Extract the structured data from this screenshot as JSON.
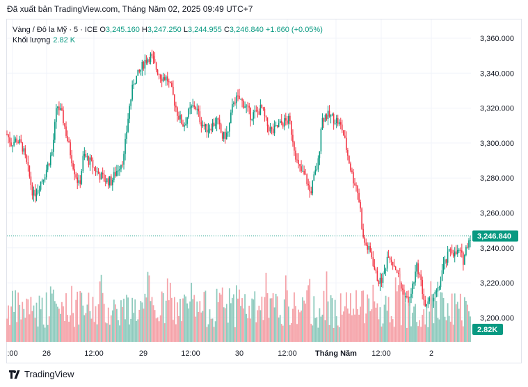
{
  "header": {
    "published_text": "Đã xuất bản TradingView.com, Tháng Năm 02, 2025 09:49 UTC+7"
  },
  "legend": {
    "symbol": "Vàng / Đô la Mỹ · 5 · ICE",
    "open_label": "O",
    "open": "3,245.160",
    "high_label": "H",
    "high": "3,247.250",
    "low_label": "L",
    "low": "3,244.955",
    "close_label": "C",
    "close": "3,246.840",
    "change": "+1.660 (+0.05%)",
    "volume_label": "Khối lượng",
    "volume_value": "2.82 K"
  },
  "colors": {
    "up": "#089981",
    "down": "#f23645",
    "vol_up": "#8fcbbe",
    "vol_down": "#f5a3a9",
    "price_line": "#089981",
    "grid": "#f0f3fa"
  },
  "chart_data": {
    "type": "candlestick",
    "price_axis": {
      "ticks": [
        3360,
        3340,
        3320,
        3300,
        3280,
        3260,
        3240,
        3220,
        3200
      ],
      "tick_labels": [
        "3,360.000",
        "3,340.000",
        "3,320.000",
        "3,300.000",
        "3,280.000",
        "3,260.000",
        "3,240.000",
        "3,220.000",
        "3,200.000"
      ],
      "ylim": [
        3193,
        3373
      ]
    },
    "time_axis": {
      "tick_labels": [
        ":00",
        "26",
        "12:00",
        "29",
        "12:00",
        "30",
        "12:00",
        "Tháng Năm",
        "12:00",
        "2"
      ]
    },
    "last_price_label": "3,246.840",
    "last_price": 3246.84,
    "volume_label": "2.82K",
    "close_path": [
      {
        "t": 0,
        "p": 3305
      },
      {
        "t": 6,
        "p": 3300
      },
      {
        "t": 14,
        "p": 3302
      },
      {
        "t": 22,
        "p": 3298
      },
      {
        "t": 30,
        "p": 3285
      },
      {
        "t": 38,
        "p": 3270
      },
      {
        "t": 45,
        "p": 3275
      },
      {
        "t": 55,
        "p": 3283
      },
      {
        "t": 65,
        "p": 3295
      },
      {
        "t": 72,
        "p": 3322
      },
      {
        "t": 80,
        "p": 3315
      },
      {
        "t": 88,
        "p": 3300
      },
      {
        "t": 96,
        "p": 3286
      },
      {
        "t": 104,
        "p": 3275
      },
      {
        "t": 110,
        "p": 3293
      },
      {
        "t": 120,
        "p": 3289
      },
      {
        "t": 130,
        "p": 3283
      },
      {
        "t": 140,
        "p": 3279
      },
      {
        "t": 150,
        "p": 3278
      },
      {
        "t": 160,
        "p": 3286
      },
      {
        "t": 168,
        "p": 3292
      },
      {
        "t": 175,
        "p": 3318
      },
      {
        "t": 182,
        "p": 3335
      },
      {
        "t": 190,
        "p": 3340
      },
      {
        "t": 198,
        "p": 3347
      },
      {
        "t": 206,
        "p": 3350
      },
      {
        "t": 214,
        "p": 3343
      },
      {
        "t": 222,
        "p": 3338
      },
      {
        "t": 230,
        "p": 3337
      },
      {
        "t": 238,
        "p": 3328
      },
      {
        "t": 246,
        "p": 3316
      },
      {
        "t": 254,
        "p": 3310
      },
      {
        "t": 262,
        "p": 3318
      },
      {
        "t": 270,
        "p": 3322
      },
      {
        "t": 278,
        "p": 3313
      },
      {
        "t": 286,
        "p": 3308
      },
      {
        "t": 294,
        "p": 3310
      },
      {
        "t": 302,
        "p": 3313
      },
      {
        "t": 310,
        "p": 3303
      },
      {
        "t": 318,
        "p": 3306
      },
      {
        "t": 326,
        "p": 3325
      },
      {
        "t": 334,
        "p": 3325
      },
      {
        "t": 342,
        "p": 3322
      },
      {
        "t": 350,
        "p": 3316
      },
      {
        "t": 358,
        "p": 3317
      },
      {
        "t": 366,
        "p": 3320
      },
      {
        "t": 374,
        "p": 3310
      },
      {
        "t": 382,
        "p": 3306
      },
      {
        "t": 390,
        "p": 3310
      },
      {
        "t": 398,
        "p": 3312
      },
      {
        "t": 406,
        "p": 3313
      },
      {
        "t": 412,
        "p": 3300
      },
      {
        "t": 418,
        "p": 3287
      },
      {
        "t": 424,
        "p": 3283
      },
      {
        "t": 430,
        "p": 3280
      },
      {
        "t": 436,
        "p": 3271
      },
      {
        "t": 442,
        "p": 3281
      },
      {
        "t": 448,
        "p": 3290
      },
      {
        "t": 452,
        "p": 3313
      },
      {
        "t": 458,
        "p": 3316
      },
      {
        "t": 466,
        "p": 3315
      },
      {
        "t": 474,
        "p": 3313
      },
      {
        "t": 482,
        "p": 3308
      },
      {
        "t": 490,
        "p": 3293
      },
      {
        "t": 497,
        "p": 3280
      },
      {
        "t": 503,
        "p": 3275
      },
      {
        "t": 508,
        "p": 3262
      },
      {
        "t": 512,
        "p": 3245
      },
      {
        "t": 518,
        "p": 3240
      },
      {
        "t": 524,
        "p": 3236
      },
      {
        "t": 530,
        "p": 3225
      },
      {
        "t": 536,
        "p": 3220
      },
      {
        "t": 542,
        "p": 3225
      },
      {
        "t": 548,
        "p": 3238
      },
      {
        "t": 554,
        "p": 3232
      },
      {
        "t": 560,
        "p": 3228
      },
      {
        "t": 566,
        "p": 3218
      },
      {
        "t": 572,
        "p": 3213
      },
      {
        "t": 578,
        "p": 3208
      },
      {
        "t": 584,
        "p": 3220
      },
      {
        "t": 590,
        "p": 3230
      },
      {
        "t": 596,
        "p": 3218
      },
      {
        "t": 602,
        "p": 3205
      },
      {
        "t": 608,
        "p": 3209
      },
      {
        "t": 614,
        "p": 3212
      },
      {
        "t": 620,
        "p": 3215
      },
      {
        "t": 626,
        "p": 3228
      },
      {
        "t": 632,
        "p": 3233
      },
      {
        "t": 638,
        "p": 3240
      },
      {
        "t": 644,
        "p": 3236
      },
      {
        "t": 650,
        "p": 3238
      },
      {
        "t": 656,
        "p": 3233
      },
      {
        "t": 662,
        "p": 3243
      },
      {
        "t": 666,
        "p": 3246.84
      }
    ]
  }
}
